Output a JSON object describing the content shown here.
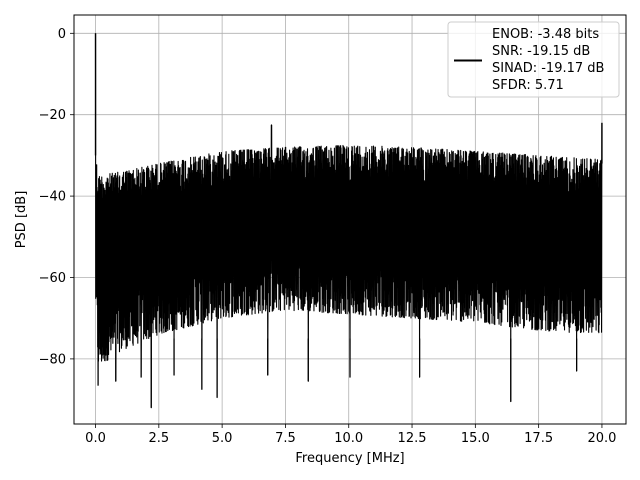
{
  "chart_data": {
    "type": "line",
    "title": "",
    "xlabel": "Frequency [MHz]",
    "ylabel": "PSD [dB]",
    "xlim": [
      -0.85,
      20.95
    ],
    "ylim": [
      -96.0,
      4.5
    ],
    "xticks": [
      0.0,
      2.5,
      5.0,
      7.5,
      10.0,
      12.5,
      15.0,
      17.5,
      20.0
    ],
    "xtick_labels": [
      "0.0",
      "2.5",
      "5.0",
      "7.5",
      "10.0",
      "12.5",
      "15.0",
      "17.5",
      "20.0"
    ],
    "yticks": [
      0,
      -20,
      -40,
      -60,
      -80
    ],
    "ytick_labels": [
      "0",
      "−20",
      "−40",
      "−60",
      "−80"
    ],
    "grid": true,
    "legend_placement": "top-right",
    "series": [
      {
        "name": "ENOB: -3.48 bits\nSNR: -19.15 dB\nSINAD: -19.17 dB\nSFDR: 5.71",
        "color": "#000000",
        "x_range": [
          0.0,
          20.0
        ],
        "peak": {
          "x": 0.0,
          "y": 0.0
        },
        "spurs": [
          {
            "x": 6.95,
            "y": -22.5
          },
          {
            "x": 20.0,
            "y": -22.0
          }
        ],
        "upper_envelope": [
          {
            "x": 0.0,
            "y": -29
          },
          {
            "x": 0.1,
            "y": -35
          },
          {
            "x": 1.0,
            "y": -34
          },
          {
            "x": 2.5,
            "y": -32
          },
          {
            "x": 5.0,
            "y": -29
          },
          {
            "x": 7.5,
            "y": -28
          },
          {
            "x": 10.0,
            "y": -27.5
          },
          {
            "x": 12.5,
            "y": -28
          },
          {
            "x": 15.0,
            "y": -29
          },
          {
            "x": 17.5,
            "y": -30
          },
          {
            "x": 20.0,
            "y": -31
          }
        ],
        "lower_envelope": [
          {
            "x": 0.0,
            "y": -66
          },
          {
            "x": 0.1,
            "y": -82
          },
          {
            "x": 1.0,
            "y": -78
          },
          {
            "x": 2.5,
            "y": -74
          },
          {
            "x": 5.0,
            "y": -70
          },
          {
            "x": 7.5,
            "y": -68
          },
          {
            "x": 10.0,
            "y": -69
          },
          {
            "x": 12.5,
            "y": -70
          },
          {
            "x": 15.0,
            "y": -71
          },
          {
            "x": 17.5,
            "y": -73
          },
          {
            "x": 20.0,
            "y": -74
          }
        ],
        "dips": [
          {
            "x": 0.1,
            "y": -86.5
          },
          {
            "x": 0.8,
            "y": -85.5
          },
          {
            "x": 1.8,
            "y": -84.5
          },
          {
            "x": 2.2,
            "y": -92.0
          },
          {
            "x": 3.1,
            "y": -84.0
          },
          {
            "x": 4.2,
            "y": -87.5
          },
          {
            "x": 4.8,
            "y": -89.5
          },
          {
            "x": 6.8,
            "y": -84.0
          },
          {
            "x": 8.4,
            "y": -85.5
          },
          {
            "x": 10.05,
            "y": -84.5
          },
          {
            "x": 12.8,
            "y": -84.5
          },
          {
            "x": 16.4,
            "y": -90.5
          },
          {
            "x": 19.0,
            "y": -83.0
          }
        ]
      }
    ]
  }
}
